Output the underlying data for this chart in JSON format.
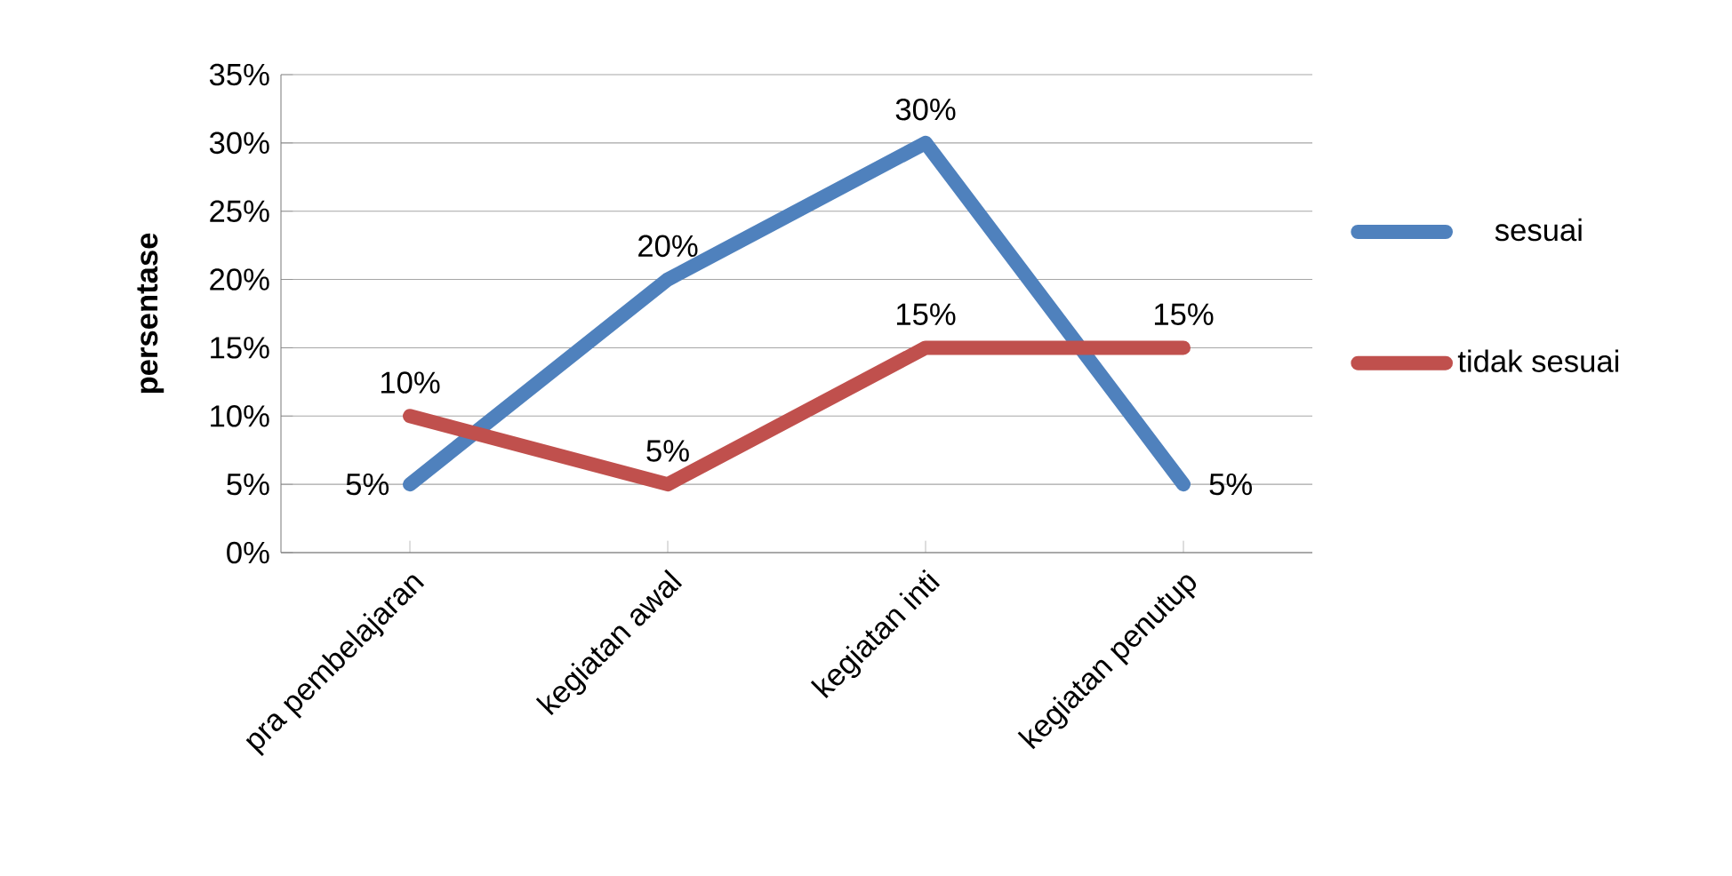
{
  "chart_data": {
    "type": "line",
    "ylabel": "persentase",
    "categories": [
      "pra pembelajaran",
      "kegiatan awal",
      "kegiatan inti",
      "kegiatan penutup"
    ],
    "series": [
      {
        "name": "sesuai",
        "color": "#4f81bd",
        "values": [
          5,
          20,
          30,
          5
        ],
        "value_labels": [
          "5%",
          "20%",
          "30%",
          "5%"
        ]
      },
      {
        "name": "tidak sesuai",
        "color": "#c0504d",
        "values": [
          10,
          5,
          15,
          15
        ],
        "value_labels": [
          "10%",
          "5%",
          "15%",
          "15%"
        ]
      }
    ],
    "ylim": [
      0,
      35
    ],
    "yticks": [
      {
        "value": 0,
        "label": "0%"
      },
      {
        "value": 5,
        "label": "5%"
      },
      {
        "value": 10,
        "label": "10%"
      },
      {
        "value": 15,
        "label": "15%"
      },
      {
        "value": 20,
        "label": "20%"
      },
      {
        "value": 25,
        "label": "25%"
      },
      {
        "value": 30,
        "label": "30%"
      },
      {
        "value": 35,
        "label": "35%"
      }
    ],
    "grid": "y",
    "legend": "right",
    "marker": "none",
    "line_style": "solid"
  }
}
